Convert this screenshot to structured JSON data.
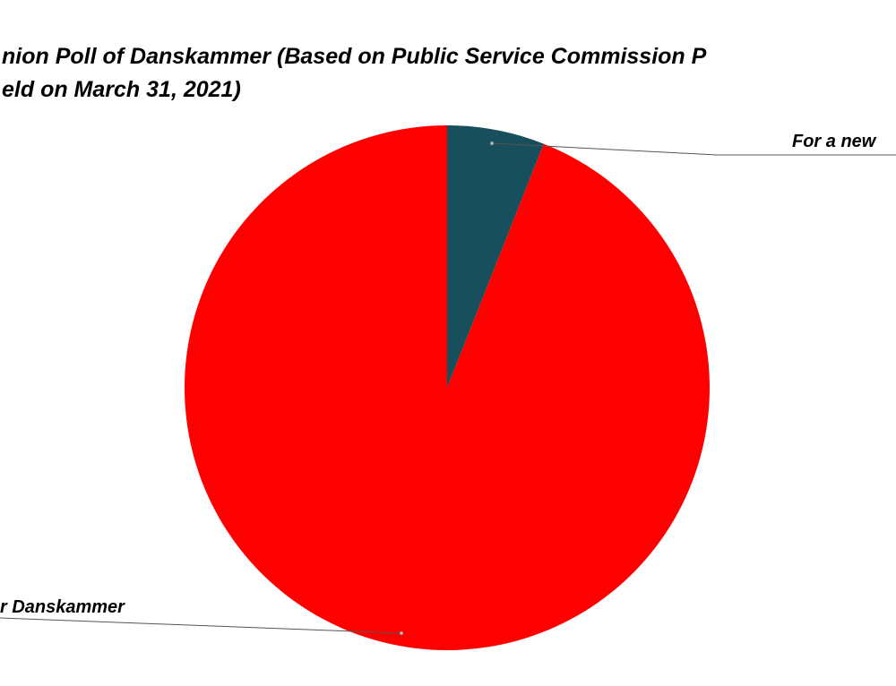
{
  "chart_data": {
    "type": "pie",
    "title": [
      "nion Poll of Danskammer (Based on Public Service Commission P",
      "eld on March 31, 2021)"
    ],
    "categories": [
      "For a new",
      "r Danskammer"
    ],
    "values": [
      6,
      94
    ],
    "colors": [
      "#174f5c",
      "#ff0000"
    ]
  }
}
